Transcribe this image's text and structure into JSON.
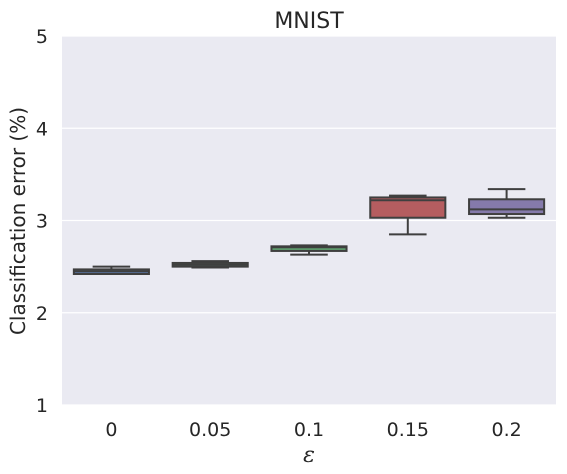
{
  "chart_data": {
    "type": "box",
    "title": "MNIST",
    "xlabel": "ε",
    "ylabel": "Classification error (%)",
    "ylim": [
      1,
      5
    ],
    "yticks": [
      "1",
      "2",
      "3",
      "4",
      "5"
    ],
    "grid": true,
    "categories": [
      "0",
      "0.05",
      "0.1",
      "0.15",
      "0.2"
    ],
    "boxes": [
      {
        "category": "0",
        "min": 2.42,
        "q1": 2.42,
        "median": 2.45,
        "q3": 2.47,
        "max": 2.5,
        "color": "#5975a4"
      },
      {
        "category": "0.05",
        "min": 2.49,
        "q1": 2.5,
        "median": 2.52,
        "q3": 2.54,
        "max": 2.56,
        "color": "#5f9e6e"
      },
      {
        "category": "0.1",
        "min": 2.63,
        "q1": 2.67,
        "median": 2.71,
        "q3": 2.72,
        "max": 2.73,
        "color": "#5f9e6e"
      },
      {
        "category": "0.15",
        "min": 2.85,
        "q1": 3.03,
        "median": 3.22,
        "q3": 3.25,
        "max": 3.27,
        "color": "#b55d60"
      },
      {
        "category": "0.2",
        "min": 3.03,
        "q1": 3.07,
        "median": 3.12,
        "q3": 3.23,
        "max": 3.34,
        "color": "#857aab"
      }
    ],
    "colors": {
      "plot_background": "#eaeaf2",
      "grid": "#ffffff",
      "line": "#3f3f3f"
    }
  }
}
